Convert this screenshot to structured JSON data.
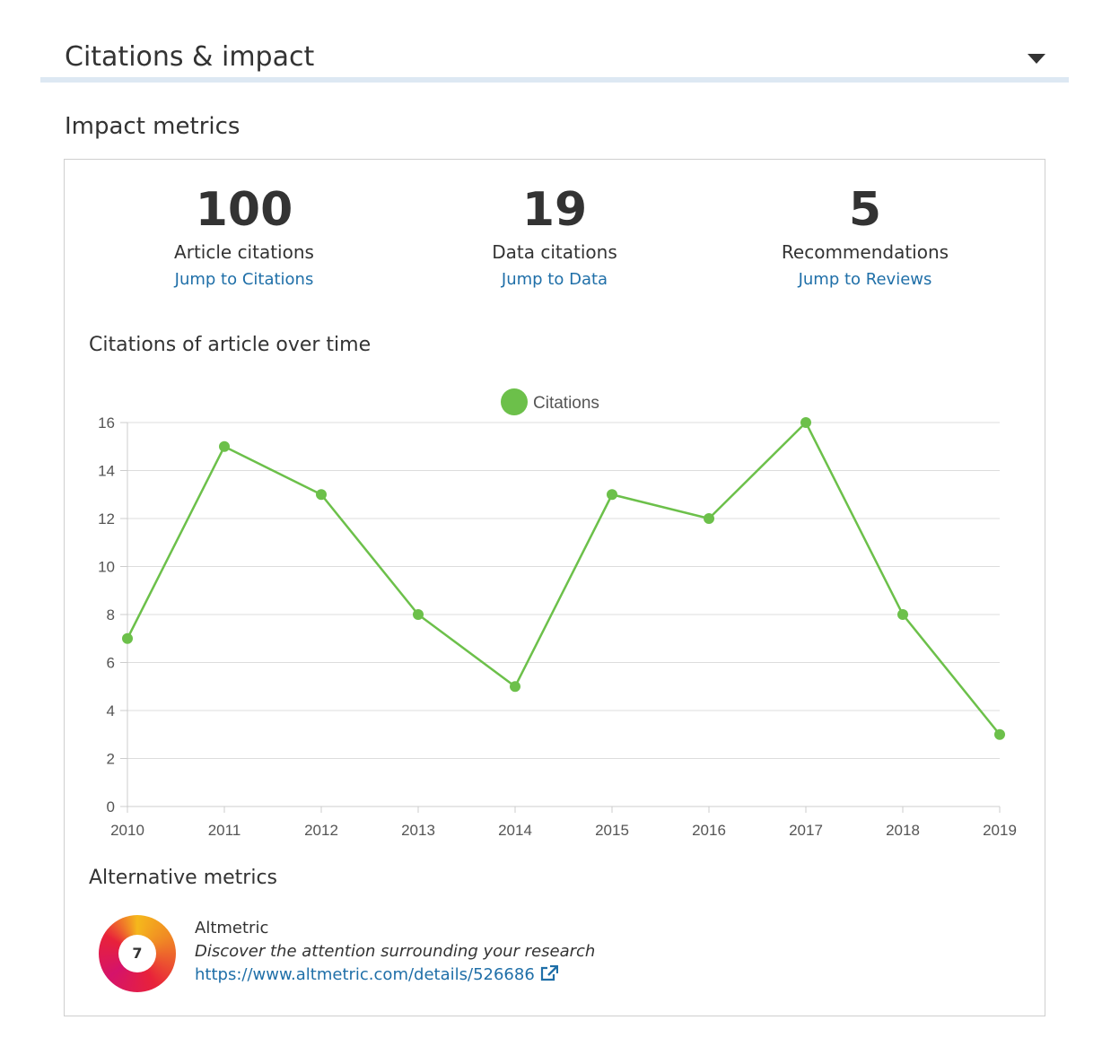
{
  "section": {
    "title": "Citations & impact"
  },
  "impact": {
    "title": "Impact metrics",
    "metrics": [
      {
        "value": "100",
        "label": "Article citations",
        "link": "Jump to Citations"
      },
      {
        "value": "19",
        "label": "Data citations",
        "link": "Jump to Data"
      },
      {
        "value": "5",
        "label": "Recommendations",
        "link": "Jump to Reviews"
      }
    ]
  },
  "chart": {
    "title": "Citations of article over time"
  },
  "chart_data": {
    "type": "line",
    "x": [
      "2010",
      "2011",
      "2012",
      "2013",
      "2014",
      "2015",
      "2016",
      "2017",
      "2018",
      "2019"
    ],
    "series": [
      {
        "name": "Citations",
        "values": [
          7,
          15,
          13,
          8,
          5,
          13,
          12,
          16,
          8,
          3
        ],
        "color": "#6cc04a"
      }
    ],
    "yticks": [
      0,
      2,
      4,
      6,
      8,
      10,
      12,
      14,
      16
    ],
    "ylim": [
      0,
      16
    ],
    "grid": true,
    "legend": "top-center",
    "title": "Citations of article over time",
    "xlabel": "",
    "ylabel": ""
  },
  "alternative": {
    "title": "Alternative metrics",
    "badge_score": "7",
    "name": "Altmetric",
    "description": "Discover the attention surrounding your research",
    "link": "https://www.altmetric.com/details/526686",
    "link_icon": "external-link-icon",
    "badge_colors": [
      "#f5b81c",
      "#f08a24",
      "#e8223a",
      "#d5136a"
    ]
  },
  "colors": {
    "link": "#1f6fa8",
    "header_rule": "#dde8f3",
    "series": "#6cc04a"
  }
}
